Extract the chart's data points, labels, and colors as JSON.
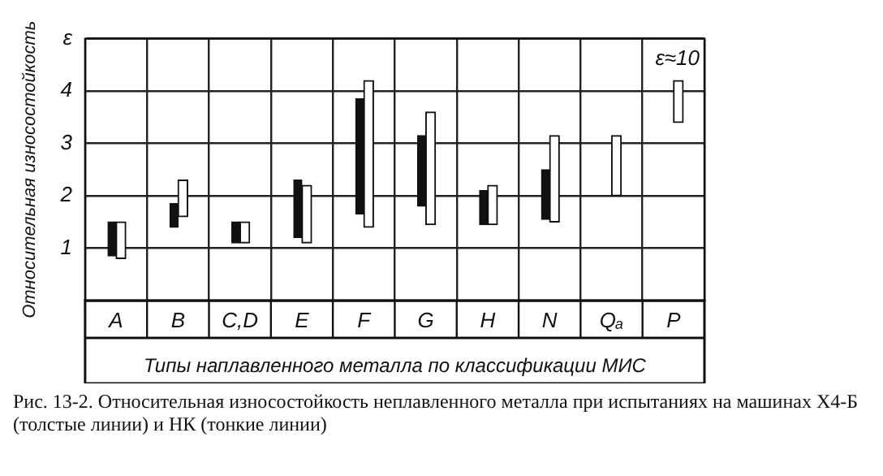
{
  "chart_data": {
    "type": "bar",
    "ylabel": "Относительная износостойкость",
    "xlabel": "Типы наплавленного металла по классификации МИС",
    "categories": [
      "A",
      "B",
      "C,D",
      "E",
      "F",
      "G",
      "H",
      "N",
      "Qₐ",
      "P"
    ],
    "series": [
      {
        "color": "#111111",
        "base": [
          0.85,
          1.4,
          1.1,
          1.2,
          1.65,
          1.8,
          1.45,
          1.55,
          null,
          null
        ],
        "values": [
          0.65,
          0.45,
          0.4,
          1.1,
          2.2,
          1.35,
          0.65,
          0.95,
          null,
          null
        ]
      },
      {
        "color": "#ffffff",
        "base": [
          0.8,
          1.6,
          1.1,
          1.1,
          1.4,
          1.45,
          1.45,
          1.5,
          2.0,
          3.4
        ],
        "values": [
          0.7,
          0.7,
          0.4,
          1.1,
          2.8,
          2.15,
          0.75,
          1.65,
          1.15,
          0.8
        ]
      }
    ],
    "ylim": [
      0,
      5
    ],
    "yticks": [
      {
        "value": 0,
        "label": null
      },
      1,
      2,
      3,
      4,
      {
        "value": 5,
        "label": "ε"
      }
    ],
    "grid": true,
    "annotations": [
      "ε≈10",
      "Рис. 13-2. Относительная износостойкость неплавленного металла при испытаниях на машинах Х4-Б (толстые линии) и НК (тонкие линии)"
    ]
  }
}
